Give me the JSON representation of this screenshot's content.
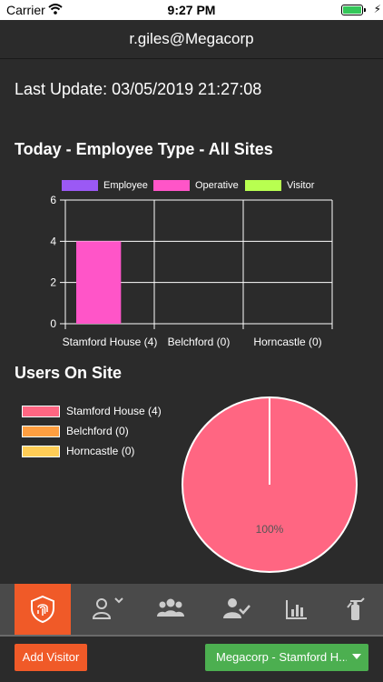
{
  "status_bar": {
    "carrier": "Carrier",
    "time": "9:27 PM"
  },
  "header": {
    "title": "r.giles@Megacorp"
  },
  "last_update": "Last Update: 03/05/2019 21:27:08",
  "bar_section": {
    "title": "Today - Employee Type - All Sites"
  },
  "pie_section": {
    "title": "Users On Site"
  },
  "chart_data": [
    {
      "type": "bar",
      "categories": [
        "Stamford House (4)",
        "Belchford (0)",
        "Horncastle (0)"
      ],
      "series": [
        {
          "name": "Employee",
          "color": "#9b59f5",
          "values": [
            0,
            0,
            0
          ]
        },
        {
          "name": "Operative",
          "color": "#ff55c8",
          "values": [
            4,
            0,
            0
          ]
        },
        {
          "name": "Visitor",
          "color": "#b8ff50",
          "values": [
            0,
            0,
            0
          ]
        }
      ],
      "ylim": [
        0,
        6
      ],
      "yticks": [
        "0",
        "2",
        "4",
        "6"
      ],
      "grid": true,
      "legend": "top"
    },
    {
      "type": "pie",
      "slices": [
        {
          "name": "Stamford House (4)",
          "value": 4,
          "color": "#ff6682"
        },
        {
          "name": "Belchford (0)",
          "value": 0,
          "color": "#ff9f40"
        },
        {
          "name": "Horncastle (0)",
          "value": 0,
          "color": "#ffcd56"
        }
      ],
      "labels": [
        "100%"
      ],
      "legend": "left"
    }
  ],
  "tabs": [
    {
      "icon": "fingerprint-shield-icon",
      "active": true
    },
    {
      "icon": "user-dropdown-icon",
      "active": false
    },
    {
      "icon": "group-icon",
      "active": false
    },
    {
      "icon": "user-check-icon",
      "active": false
    },
    {
      "icon": "bar-chart-icon",
      "active": false
    },
    {
      "icon": "fire-extinguisher-icon",
      "active": false
    }
  ],
  "actions": {
    "add_visitor": "Add Visitor",
    "site": "Megacorp - Stamford H..."
  },
  "colors": {
    "accent": "#f05a28",
    "site_button": "#4caf50",
    "background": "#2b2b2b",
    "tabbar": "#4a4a4a"
  }
}
